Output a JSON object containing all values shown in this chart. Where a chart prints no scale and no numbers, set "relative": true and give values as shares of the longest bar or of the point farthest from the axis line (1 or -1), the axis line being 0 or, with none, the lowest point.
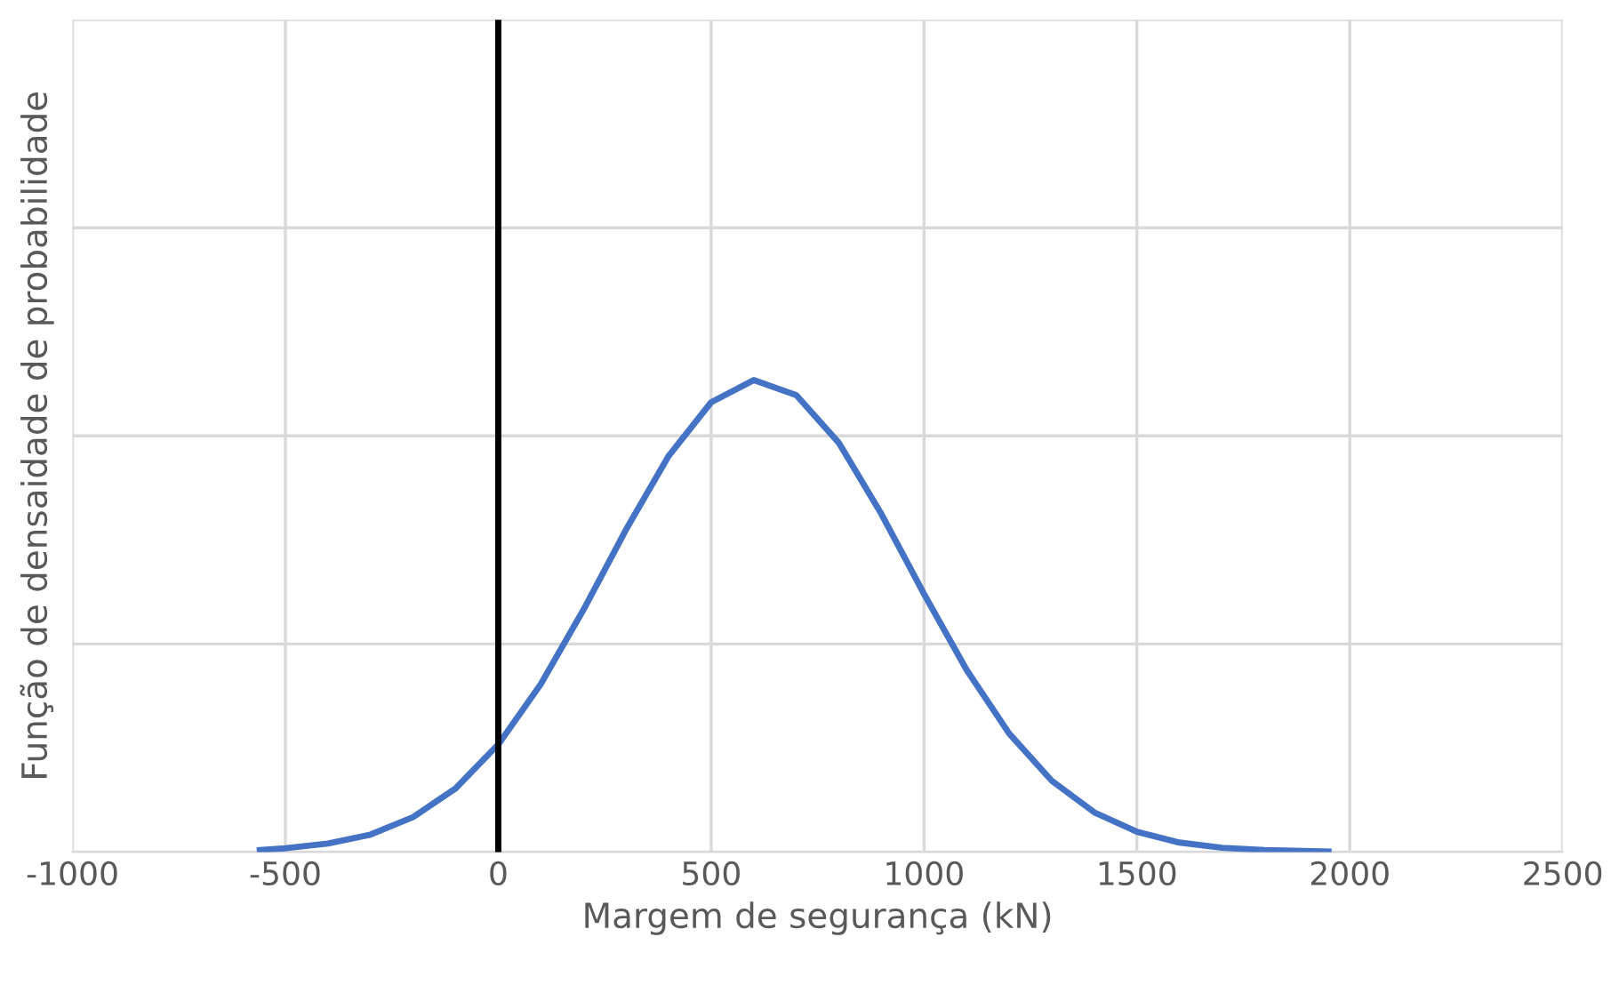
{
  "chart_data": {
    "type": "line",
    "xlabel": "Margem de segurança (kN)",
    "ylabel": "Função de densaidade de probabilidade",
    "relative": true,
    "xlim": [
      -1000,
      2500
    ],
    "xticks": [
      -1000,
      -500,
      0,
      500,
      1000,
      1500,
      2000,
      2500
    ],
    "grid": true,
    "marker": "none",
    "line_style": "solid",
    "series": [
      {
        "color": "#4472c4",
        "x": [
          -560,
          -500,
          -400,
          -300,
          -200,
          -100,
          0,
          100,
          200,
          300,
          400,
          500,
          600,
          700,
          800,
          900,
          1000,
          1100,
          1200,
          1300,
          1400,
          1500,
          1600,
          1700,
          1800,
          1950
        ],
        "values": [
          0.004,
          0.008,
          0.018,
          0.037,
          0.074,
          0.135,
          0.228,
          0.356,
          0.513,
          0.683,
          0.839,
          0.953,
          1.0,
          0.968,
          0.867,
          0.716,
          0.547,
          0.386,
          0.251,
          0.151,
          0.084,
          0.043,
          0.02,
          0.009,
          0.004,
          0.001
        ]
      }
    ],
    "ref_lines": [
      {
        "axis": "x",
        "value": 0,
        "color": "#000000",
        "line_style": "solid"
      }
    ]
  }
}
